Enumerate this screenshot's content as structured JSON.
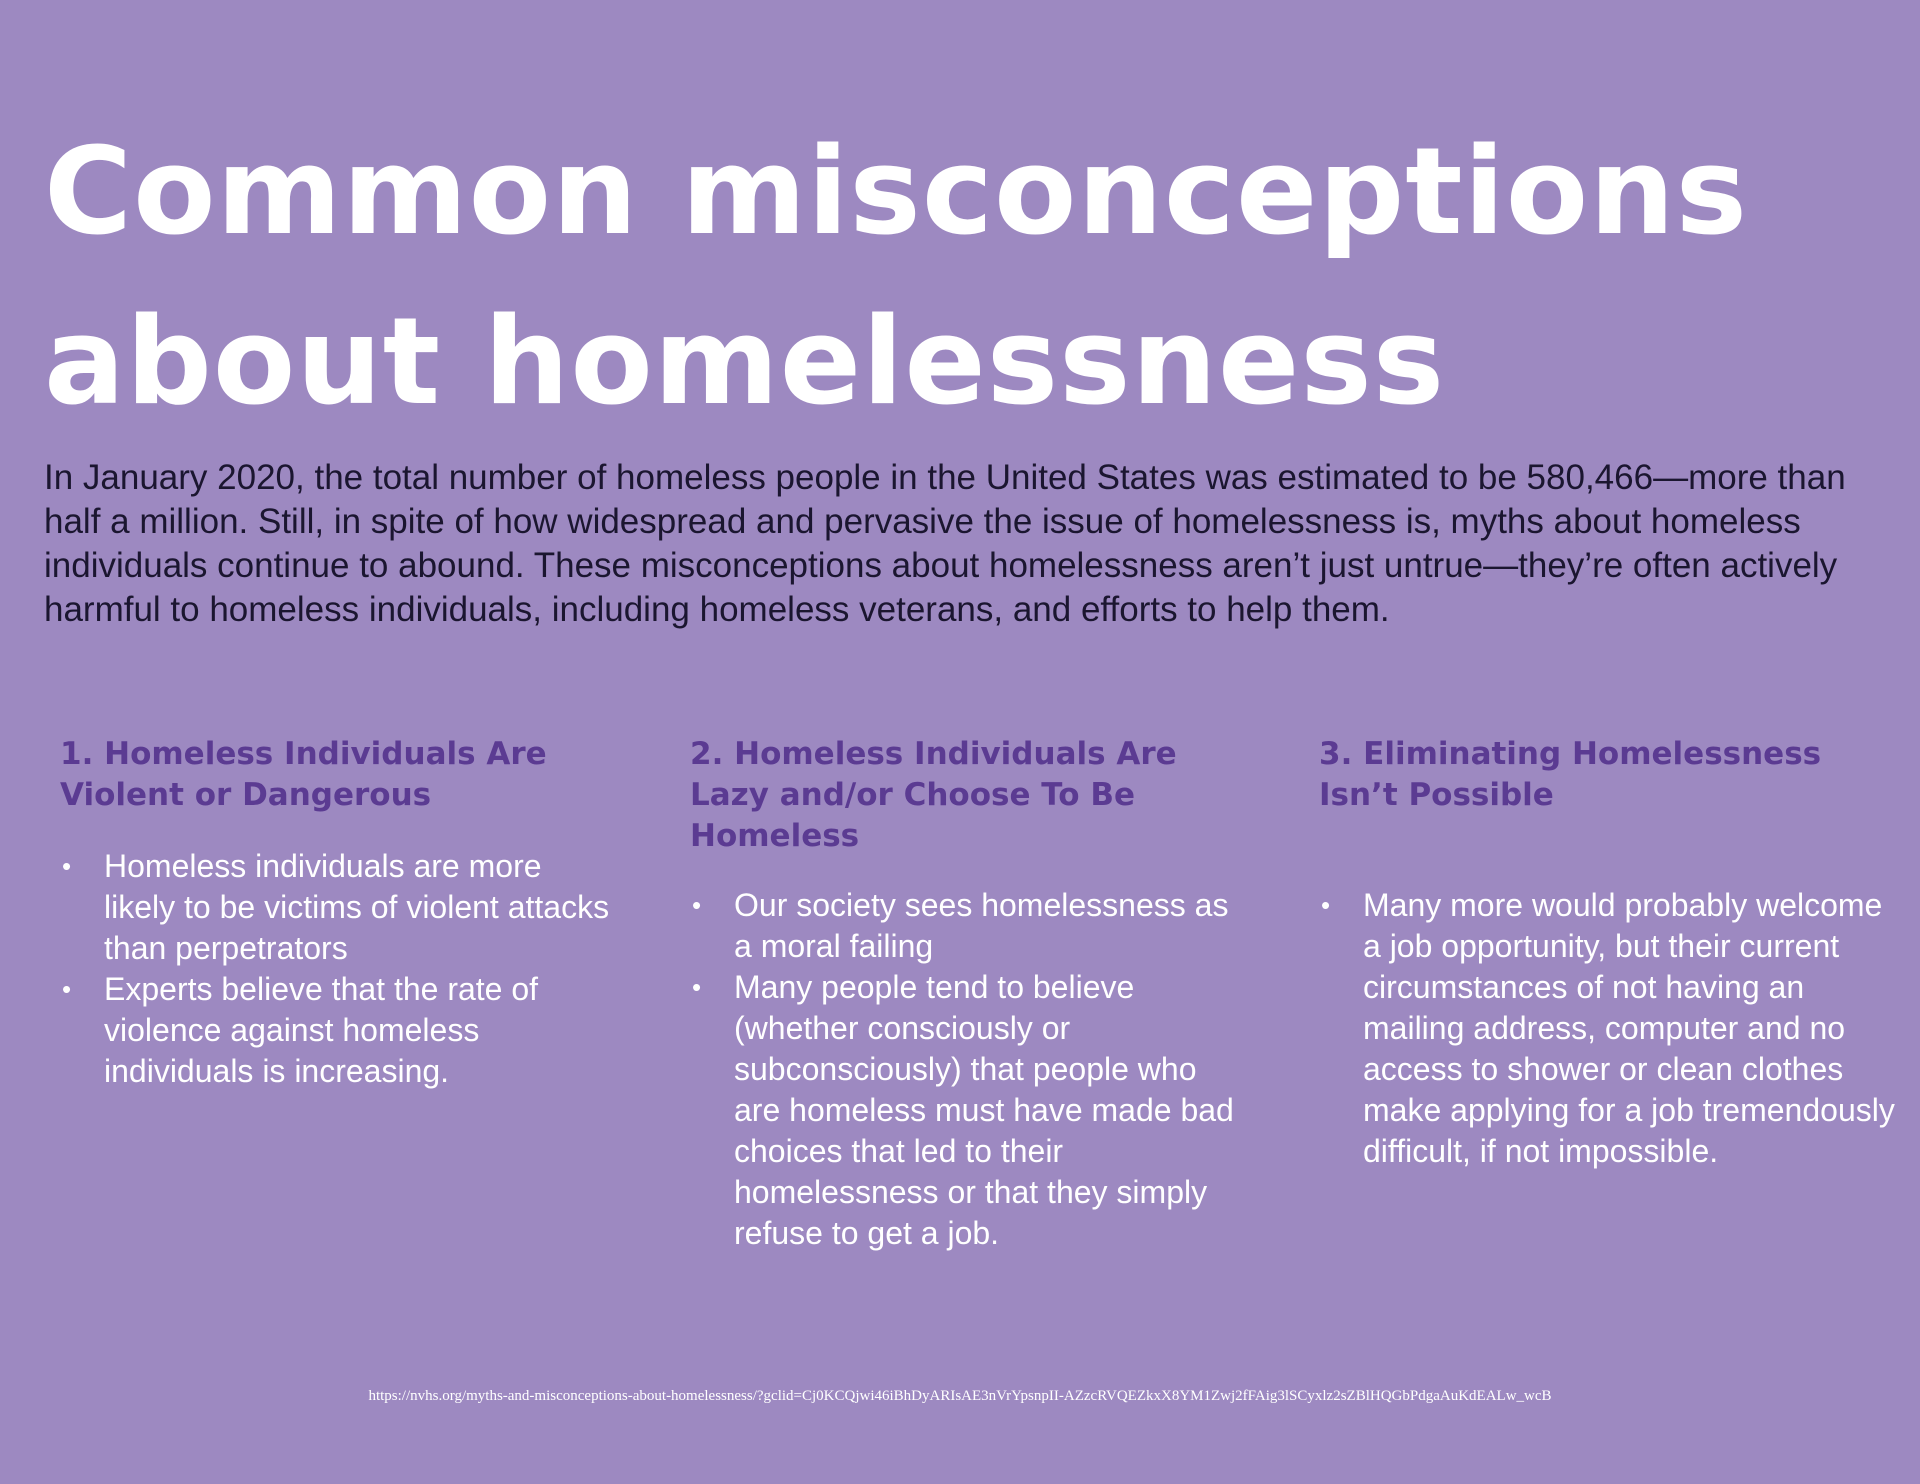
{
  "title": {
    "line1": "Common misconceptions",
    "line2": "about homelessness"
  },
  "intro": "In January 2020, the total number of homeless people in the United States was estimated to be 580,466—more than half a million. Still, in spite of how widespread and pervasive the issue of homelessness is, myths about homeless individuals continue to abound. These misconceptions about homelessness aren’t just untrue—they’re often actively harmful to homeless individuals, including homeless veterans, and efforts to help them.",
  "bullet_glyph": "•",
  "columns": [
    {
      "heading": "1. Homeless Individuals Are Violent or Dangerous",
      "bullets": [
        "Homeless individuals are more likely to be victims of violent attacks than perpetrators",
        "Experts believe that the rate of violence against homeless individuals is increasing."
      ]
    },
    {
      "heading": "2. Homeless Individuals Are Lazy and/or Choose To Be Homeless",
      "bullets": [
        "Our society sees homelessness as a moral failing",
        "Many people tend to believe (whether consciously or subconsciously) that people who are homeless must have made bad choices that led to their homelessness or that they simply refuse to get a job."
      ]
    },
    {
      "heading": "3. Eliminating Homelessness Isn’t Possible",
      "bullets": [
        "Many more would probably welcome a job opportunity, but their current circumstances of not having an mailing address, computer and no access to shower or clean clothes make applying for a job tremendously difficult, if not impossible."
      ]
    }
  ],
  "source_url": "https://nvhs.org/myths-and-misconceptions-about-homelessness/?gclid=Cj0KCQjwi46iBhDyARIsAE3nVrYpsnpII-AZzcRVQEZkxX8YM1Zwj2fFAig3lSCyxlz2sZBlHQGbPdgaAuKdEALw_wcB",
  "colors": {
    "background": "#9d89c1",
    "title_text": "#ffffff",
    "intro_text": "#1b1630",
    "heading_text": "#5b3b92",
    "bullet_text": "#ffffff"
  }
}
